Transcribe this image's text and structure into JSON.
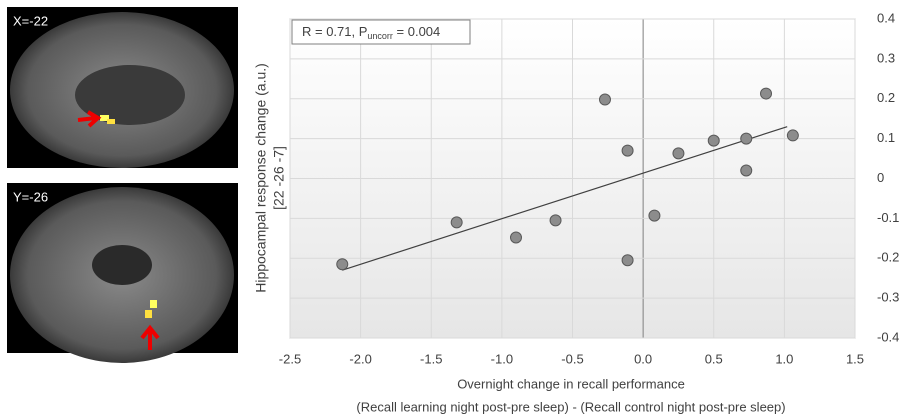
{
  "panels": [
    {
      "label": "X=-22"
    },
    {
      "label": "Y=-26"
    }
  ],
  "chart_data": {
    "type": "scatter",
    "annotation": [
      "R = 0.71, P",
      "uncorr",
      " = 0.004"
    ],
    "xlabel": [
      "Overnight change in recall performance",
      "(Recall learning night post-pre sleep) - (Recall control night post-pre sleep)"
    ],
    "ylabel": [
      "Hippocampal response change (a.u.)",
      "[22 -26 -7]"
    ],
    "x": [
      -2.13,
      -1.32,
      -0.9,
      -0.62,
      -0.27,
      -0.11,
      -0.11,
      0.08,
      0.25,
      0.5,
      0.73,
      0.73,
      0.87,
      1.06
    ],
    "values": [
      -0.215,
      -0.11,
      -0.148,
      -0.105,
      0.198,
      0.07,
      -0.205,
      -0.093,
      0.063,
      0.095,
      0.1,
      0.02,
      0.213,
      0.108
    ],
    "color": "#8c8c8c",
    "trend": {
      "x": [
        -2.13,
        1.02
      ],
      "y": [
        -0.23,
        0.13
      ],
      "color": "#404040"
    },
    "xlim": [
      -2.5,
      1.5
    ],
    "xticks": [
      -2.5,
      {
        "value": -2,
        "label": "-2.0"
      },
      -1.5,
      {
        "value": -1,
        "label": "-1.0"
      },
      -0.5,
      {
        "value": 0,
        "label": "0.0"
      },
      0.5,
      {
        "value": 1,
        "label": "1.0"
      },
      1.5
    ],
    "ylim": [
      -0.4,
      0.4
    ],
    "yticks": [
      -0.4,
      -0.3,
      -0.2,
      -0.1,
      0,
      0.1,
      0.2,
      0.3,
      0.4
    ],
    "grid": true
  }
}
